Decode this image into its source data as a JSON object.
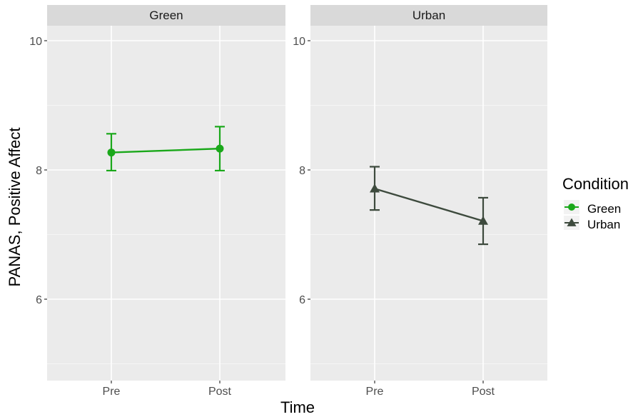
{
  "chart_data": {
    "type": "line",
    "facets": [
      "Green",
      "Urban"
    ],
    "categories": [
      "Pre",
      "Post"
    ],
    "xlabel": "Time",
    "ylabel": "PANAS, Positive Affect",
    "ylim": [
      4.8,
      10.2
    ],
    "yticks": [
      6,
      8,
      10
    ],
    "grid": true,
    "legend": {
      "title": "Condition",
      "placement": "right",
      "entries": [
        {
          "label": "Green",
          "shape": "circle",
          "color": "#1aa81a"
        },
        {
          "label": "Urban",
          "shape": "triangle",
          "color": "#3d4a3d"
        }
      ]
    },
    "series": [
      {
        "name": "Green",
        "facet": "Green",
        "shape": "circle",
        "color": "#1aa81a",
        "values": [
          8.27,
          8.33
        ],
        "error_low": [
          7.99,
          7.99
        ],
        "error_high": [
          8.56,
          8.67
        ]
      },
      {
        "name": "Urban",
        "facet": "Urban",
        "shape": "triangle",
        "color": "#3d4a3d",
        "values": [
          7.71,
          7.21
        ],
        "error_low": [
          7.38,
          6.85
        ],
        "error_high": [
          8.05,
          7.57
        ]
      }
    ]
  }
}
